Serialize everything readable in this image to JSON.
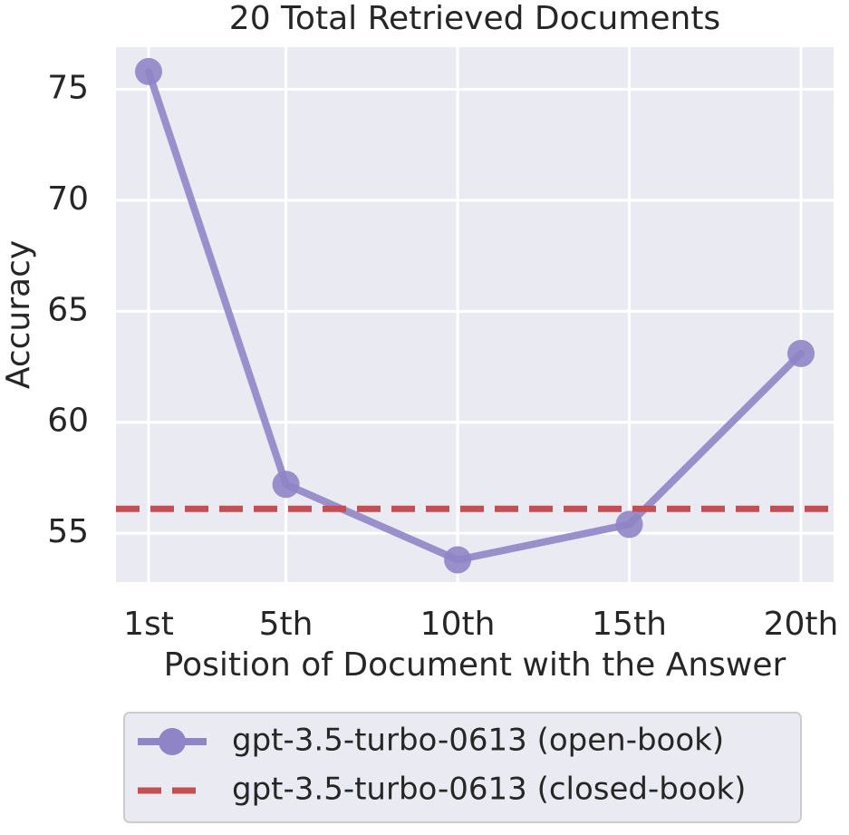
{
  "chart_data": {
    "type": "line",
    "title": "20 Total Retrieved Documents",
    "x_label": "Position of Document with the Answer",
    "y_label": "Accuracy",
    "x": [
      1,
      5,
      10,
      15,
      20
    ],
    "series": [
      {
        "name": "gpt-3.5-turbo-0613 (open-book)",
        "color": "#8f85c6",
        "values": [
          75.8,
          57.2,
          53.8,
          55.4,
          63.1
        ]
      }
    ],
    "reference_lines": [
      {
        "name": "gpt-3.5-turbo-0613 (closed-book)",
        "color": "#c44e52",
        "value": 56.1,
        "dashed": true
      }
    ],
    "xlim": [
      0.05,
      20.95
    ],
    "ylim": [
      52.8,
      76.9
    ],
    "xticks": [
      {
        "value": 1,
        "label": "1st"
      },
      {
        "value": 5,
        "label": "5th"
      },
      {
        "value": 10,
        "label": "10th"
      },
      {
        "value": 15,
        "label": "15th"
      },
      {
        "value": 20,
        "label": "20th"
      }
    ],
    "yticks": [
      55,
      60,
      65,
      70,
      75
    ],
    "grid": true,
    "legend_position": "below"
  }
}
